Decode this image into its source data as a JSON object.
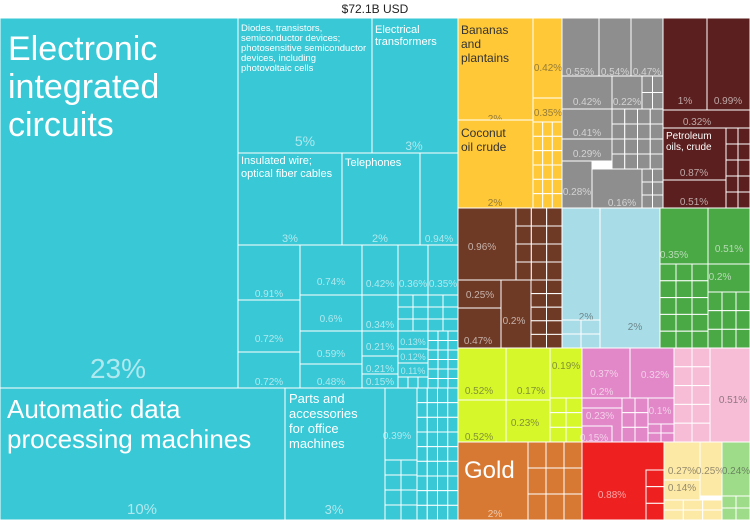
{
  "header": {
    "total": "$72.1B USD"
  },
  "colors": {
    "machinery": "#38c8d6",
    "vegetable": "#ffc837",
    "minerals": "#5a1f1e",
    "chemicals": "#8e8e8e",
    "animal": "#6e3a26",
    "textiles": "#a8dde8",
    "plastics": "#4aa845",
    "foodstuffs": "#d6f72a",
    "metals": "#e288c8",
    "stone": "#d77933",
    "instruments": "#f7bcd6",
    "transport": "#ef2020",
    "paper": "#fde9a6",
    "misc": "#9fdc8a"
  },
  "chart_data": {
    "type": "treemap",
    "title": "$72.1B USD",
    "items": [
      {
        "label": "Electronic integrated circuits",
        "value": 23,
        "pct": "23%",
        "group": "machinery"
      },
      {
        "label": "Automatic data processing machines",
        "value": 10,
        "pct": "10%",
        "group": "machinery"
      },
      {
        "label": "Diodes, transistors, semiconductor devices; photosensitive semiconductor devices, including photovoltaic cells",
        "value": 5,
        "pct": "5%",
        "group": "machinery"
      },
      {
        "label": "Electrical transformers",
        "value": 3,
        "pct": "3%",
        "group": "machinery"
      },
      {
        "label": "Insulated wire; optical fiber cables",
        "value": 3,
        "pct": "3%",
        "group": "machinery"
      },
      {
        "label": "Telephones",
        "value": 2,
        "pct": "2%",
        "group": "machinery"
      },
      {
        "label": "Parts and accessories for office machines",
        "value": 3,
        "pct": "3%",
        "group": "machinery"
      },
      {
        "label": "Bananas and plantains",
        "value": 2,
        "pct": "2%",
        "group": "vegetable"
      },
      {
        "label": "Coconut oil crude",
        "value": 2,
        "pct": "2%",
        "group": "vegetable"
      },
      {
        "label": "Petroleum oils, crude",
        "value": 0.87,
        "pct": "0.87%",
        "group": "minerals"
      },
      {
        "label": "Gold",
        "value": 2,
        "pct": "2%",
        "group": "stone"
      }
    ],
    "unlabeled_values": [
      "0.94%",
      "0.91%",
      "0.72%",
      "0.74%",
      "0.72%",
      "0.6%",
      "0.59%",
      "0.48%",
      "0.42%",
      "0.36%",
      "0.35%",
      "0.34%",
      "0.21%",
      "0.21%",
      "0.15%",
      "0.13%",
      "0.12%",
      "0.11%",
      "0.39%",
      "0.42%",
      "0.35%",
      "0.55%",
      "0.54%",
      "0.47%",
      "0.42%",
      "0.22%",
      "0.41%",
      "0.29%",
      "0.28%",
      "0.16%",
      "1%",
      "0.99%",
      "0.32%",
      "0.51%",
      "0.96%",
      "0.25%",
      "0.2%",
      "0.47%",
      "2%",
      "2%",
      "0.35%",
      "0.51%",
      "0.2%",
      "0.52%",
      "0.17%",
      "0.19%",
      "0.23%",
      "0.52%",
      "0.37%",
      "0.2%",
      "0.32%",
      "0.23%",
      "0.15%",
      "0.1%",
      "0.51%",
      "0.88%",
      "0.27%",
      "0.25%",
      "0.14%",
      "0.24%"
    ]
  }
}
